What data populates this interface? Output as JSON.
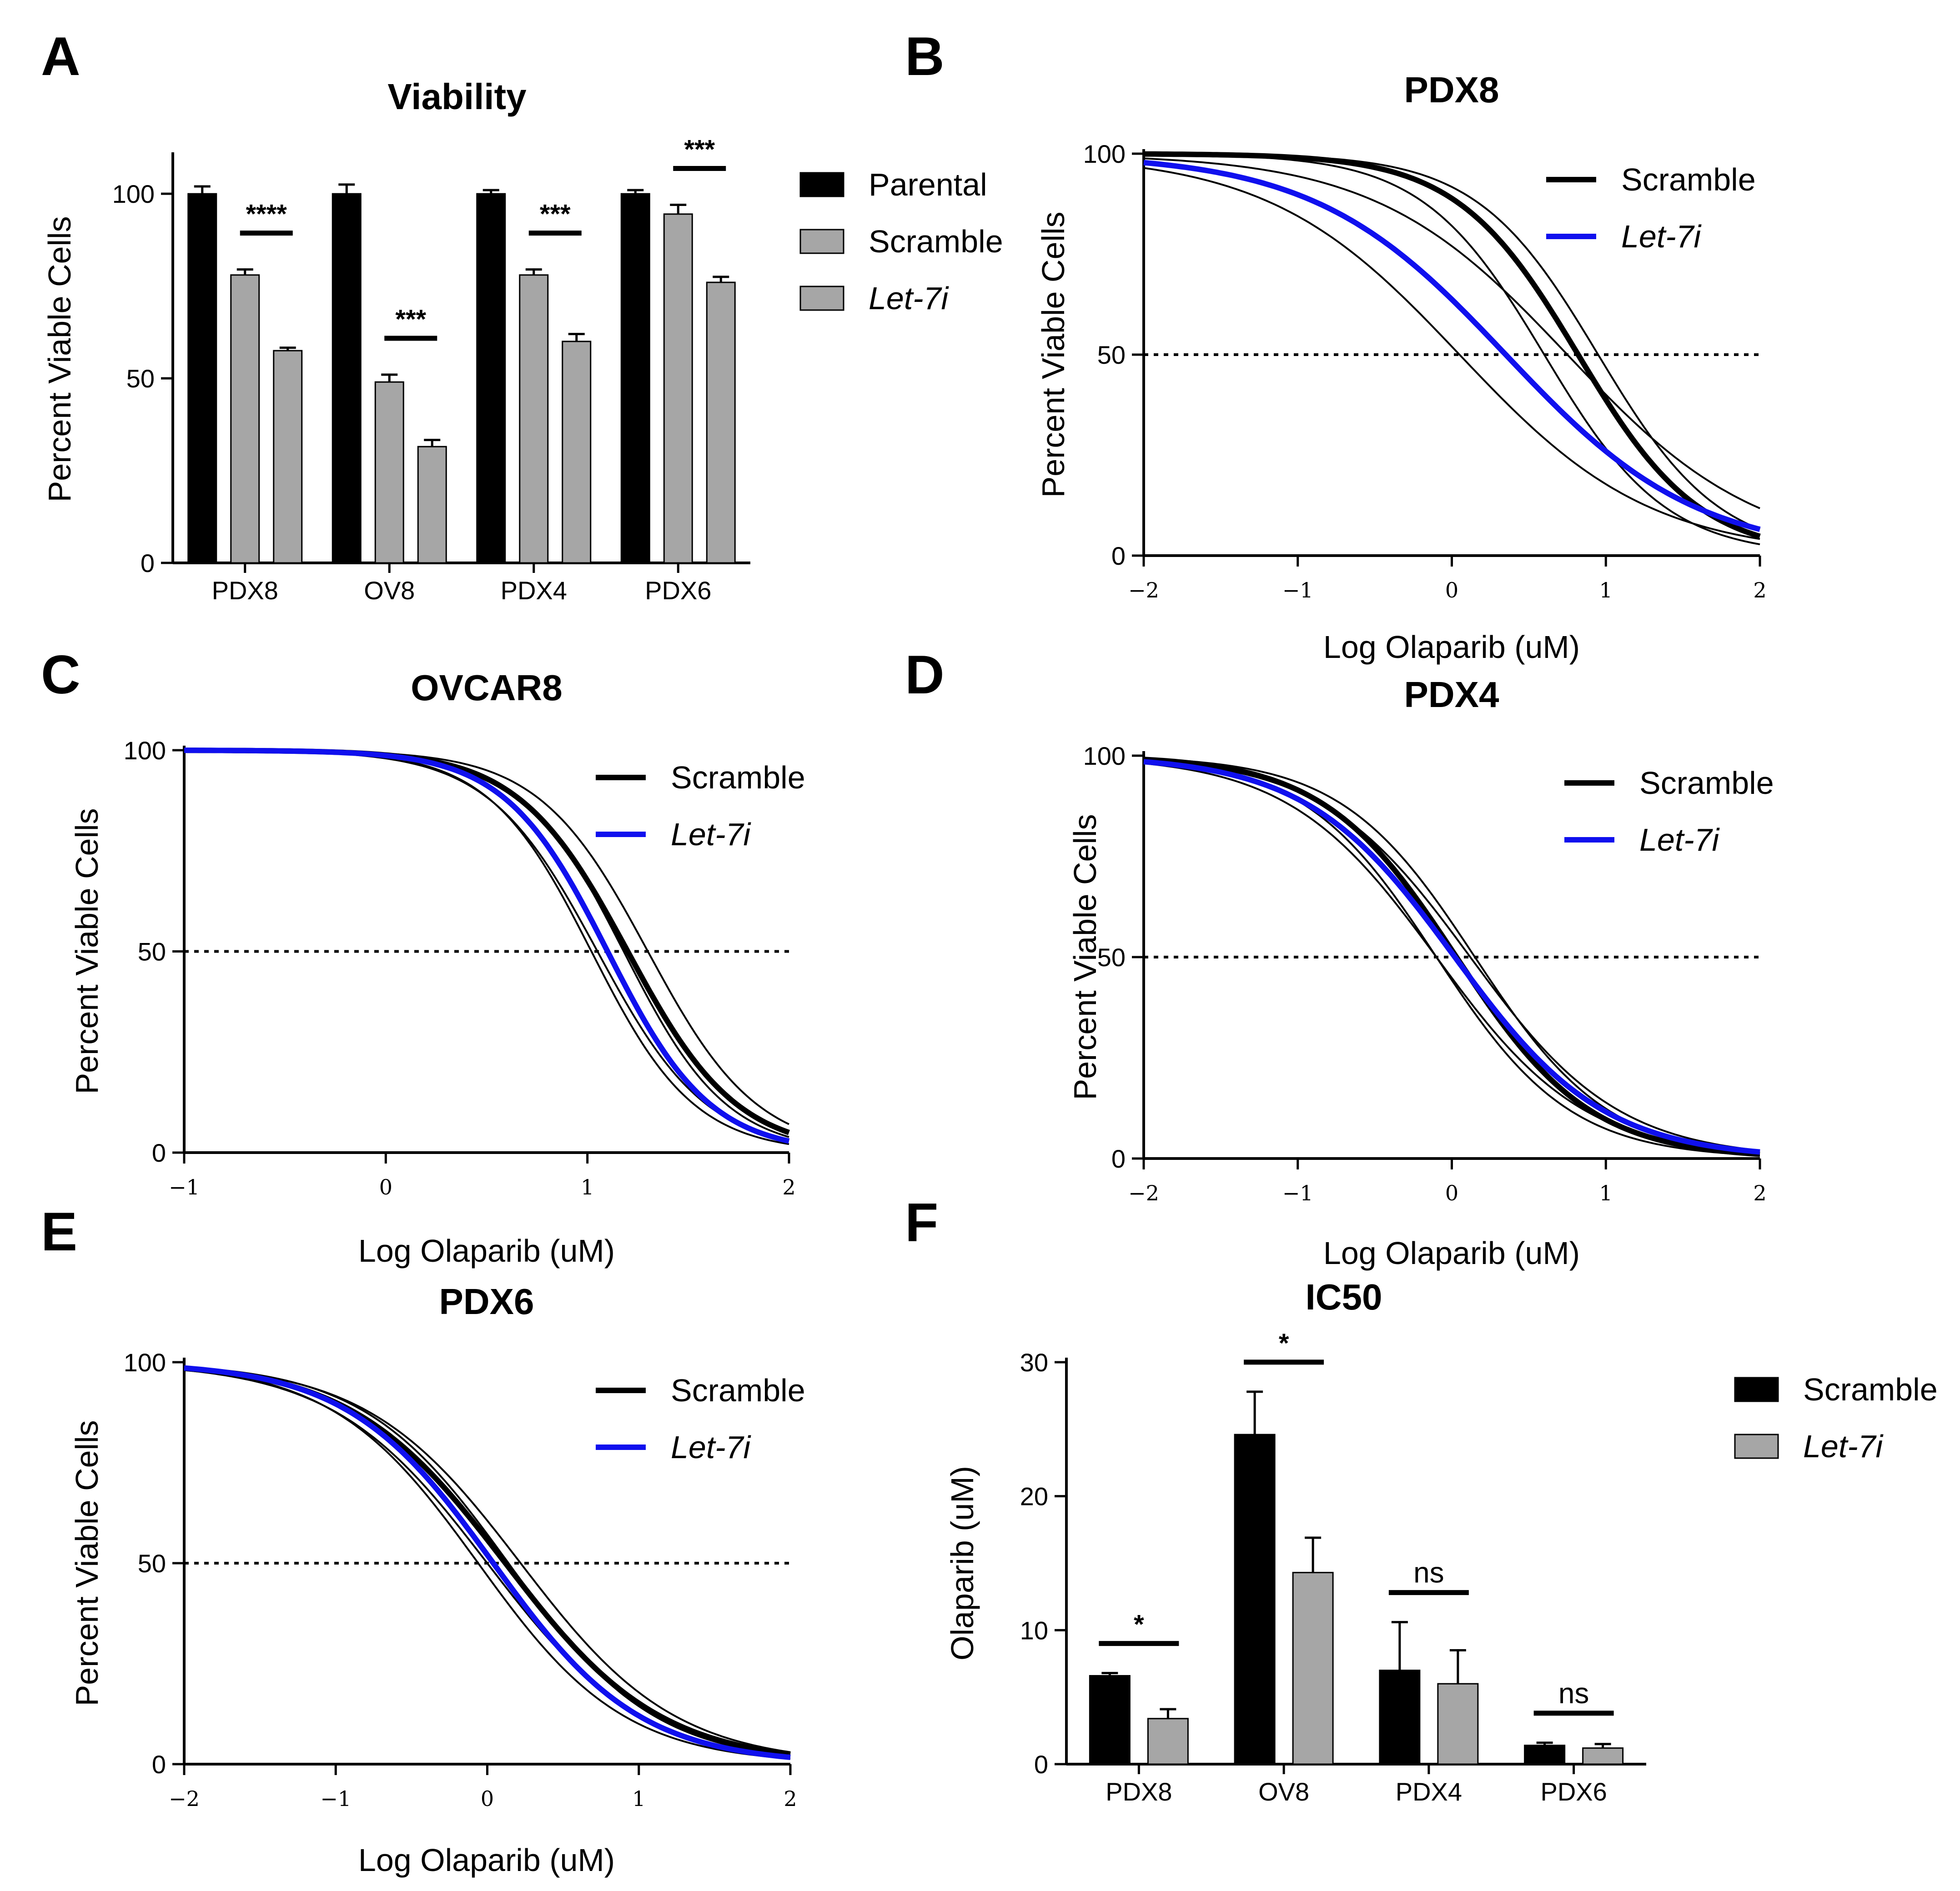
{
  "chart_data": [
    {
      "panel": "A",
      "type": "bar",
      "title": "Viability",
      "ylabel": "Percent Viable Cells",
      "xlabel": "",
      "ylim": [
        0,
        110
      ],
      "yticks": [
        0,
        50,
        100
      ],
      "categories": [
        "PDX8",
        "OV8",
        "PDX4",
        "PDX6"
      ],
      "series": [
        {
          "name": "Parental",
          "italic": false,
          "color": "#000000",
          "values": [
            100,
            100,
            100,
            100
          ],
          "errors": [
            2,
            2.5,
            1,
            1
          ]
        },
        {
          "name": "Scramble",
          "italic": false,
          "color": "#a6a6a6",
          "values": [
            78,
            49,
            78,
            94.5
          ],
          "errors": [
            1.5,
            2,
            1.5,
            2.5
          ]
        },
        {
          "name": "Let-7i",
          "italic": true,
          "color": "#a6a6a6",
          "values": [
            57.5,
            31.5,
            60,
            76
          ],
          "errors": [
            0.8,
            1.8,
            2,
            1.5
          ]
        }
      ],
      "significance": [
        "****",
        "***",
        "***",
        "***"
      ]
    },
    {
      "panel": "B",
      "type": "line",
      "title": "PDX8",
      "ylabel": "Percent Viable Cells",
      "xlabel": "Log Olaparib (uM)",
      "xlim": [
        -2,
        2
      ],
      "ylim": [
        0,
        100
      ],
      "xticks": [
        -2,
        -1,
        0,
        1,
        2
      ],
      "xtick_labels": [
        "−2",
        "−1",
        "0",
        "1",
        "2"
      ],
      "yticks": [
        0,
        50,
        100
      ],
      "reference_line": 50,
      "series": [
        {
          "name": "Scramble",
          "italic": false,
          "color": "#000000",
          "logIC50": 0.82,
          "hill": 1.1,
          "ci_logIC50": [
            0.6,
            0.95
          ]
        },
        {
          "name": "Let-7i",
          "italic": true,
          "color": "#1010ee",
          "logIC50": 0.35,
          "hill": 0.7,
          "ci_logIC50": [
            0.05,
            0.75
          ]
        }
      ]
    },
    {
      "panel": "C",
      "type": "line",
      "title": "OVCAR8",
      "ylabel": "Percent Viable Cells",
      "xlabel": "Log Olaparib (uM)",
      "xlim": [
        -1,
        2
      ],
      "ylim": [
        0,
        100
      ],
      "xticks": [
        -1,
        0,
        1,
        2
      ],
      "xtick_labels": [
        "−1",
        "0",
        "1",
        "2"
      ],
      "yticks": [
        0,
        50,
        100
      ],
      "reference_line": 50,
      "series": [
        {
          "name": "Scramble",
          "italic": false,
          "color": "#000000",
          "logIC50": 1.2,
          "hill": 1.6,
          "ci_logIC50": [
            1.05,
            1.3
          ]
        },
        {
          "name": "Let-7i",
          "italic": true,
          "color": "#1010ee",
          "logIC50": 1.1,
          "hill": 1.7,
          "ci_logIC50": [
            1.02,
            1.18
          ]
        }
      ]
    },
    {
      "panel": "D",
      "type": "line",
      "title": "PDX4",
      "ylabel": "Percent Viable Cells",
      "xlabel": "Log Olaparib (uM)",
      "xlim": [
        -2,
        2
      ],
      "ylim": [
        0,
        100
      ],
      "xticks": [
        -2,
        -1,
        0,
        1,
        2
      ],
      "xtick_labels": [
        "−2",
        "−1",
        "0",
        "1",
        "2"
      ],
      "yticks": [
        0,
        50,
        100
      ],
      "reference_line": 50,
      "series": [
        {
          "name": "Scramble",
          "italic": false,
          "color": "#000000",
          "logIC50": 0.03,
          "hill": 1.0,
          "ci_logIC50": [
            -0.1,
            0.15
          ]
        },
        {
          "name": "Let-7i",
          "italic": true,
          "color": "#1010ee",
          "logIC50": 0.02,
          "hill": 0.9,
          "ci_logIC50": [
            -0.1,
            0.12
          ]
        }
      ]
    },
    {
      "panel": "E",
      "type": "line",
      "title": "PDX6",
      "ylabel": "Percent Viable Cells",
      "xlabel": "Log Olaparib (uM)",
      "xlim": [
        -2,
        2
      ],
      "ylim": [
        0,
        100
      ],
      "xticks": [
        -2,
        -1,
        0,
        1,
        2
      ],
      "xtick_labels": [
        "−2",
        "−1",
        "0",
        "1",
        "2"
      ],
      "yticks": [
        0,
        50,
        100
      ],
      "reference_line": 50,
      "series": [
        {
          "name": "Scramble",
          "italic": false,
          "color": "#000000",
          "logIC50": 0.12,
          "hill": 0.85,
          "ci_logIC50": [
            0.0,
            0.22
          ]
        },
        {
          "name": "Let-7i",
          "italic": true,
          "color": "#1010ee",
          "logIC50": 0.04,
          "hill": 0.9,
          "ci_logIC50": [
            -0.06,
            0.14
          ]
        }
      ]
    },
    {
      "panel": "F",
      "type": "bar",
      "title": "IC50",
      "ylabel": "Olaparib (uM)",
      "xlabel": "",
      "ylim": [
        0,
        30
      ],
      "yticks": [
        0,
        10,
        20,
        30
      ],
      "categories": [
        "PDX8",
        "OV8",
        "PDX4",
        "PDX6"
      ],
      "series": [
        {
          "name": "Scramble",
          "italic": false,
          "color": "#000000",
          "values": [
            6.6,
            24.6,
            7.0,
            1.4
          ],
          "errors": [
            0.2,
            3.2,
            3.6,
            0.2
          ]
        },
        {
          "name": "Let-7i",
          "italic": true,
          "color": "#a6a6a6",
          "values": [
            3.4,
            14.3,
            6.0,
            1.2
          ],
          "errors": [
            0.7,
            2.6,
            2.5,
            0.3
          ]
        }
      ],
      "significance": [
        "*",
        "*",
        "ns",
        "ns"
      ]
    }
  ]
}
